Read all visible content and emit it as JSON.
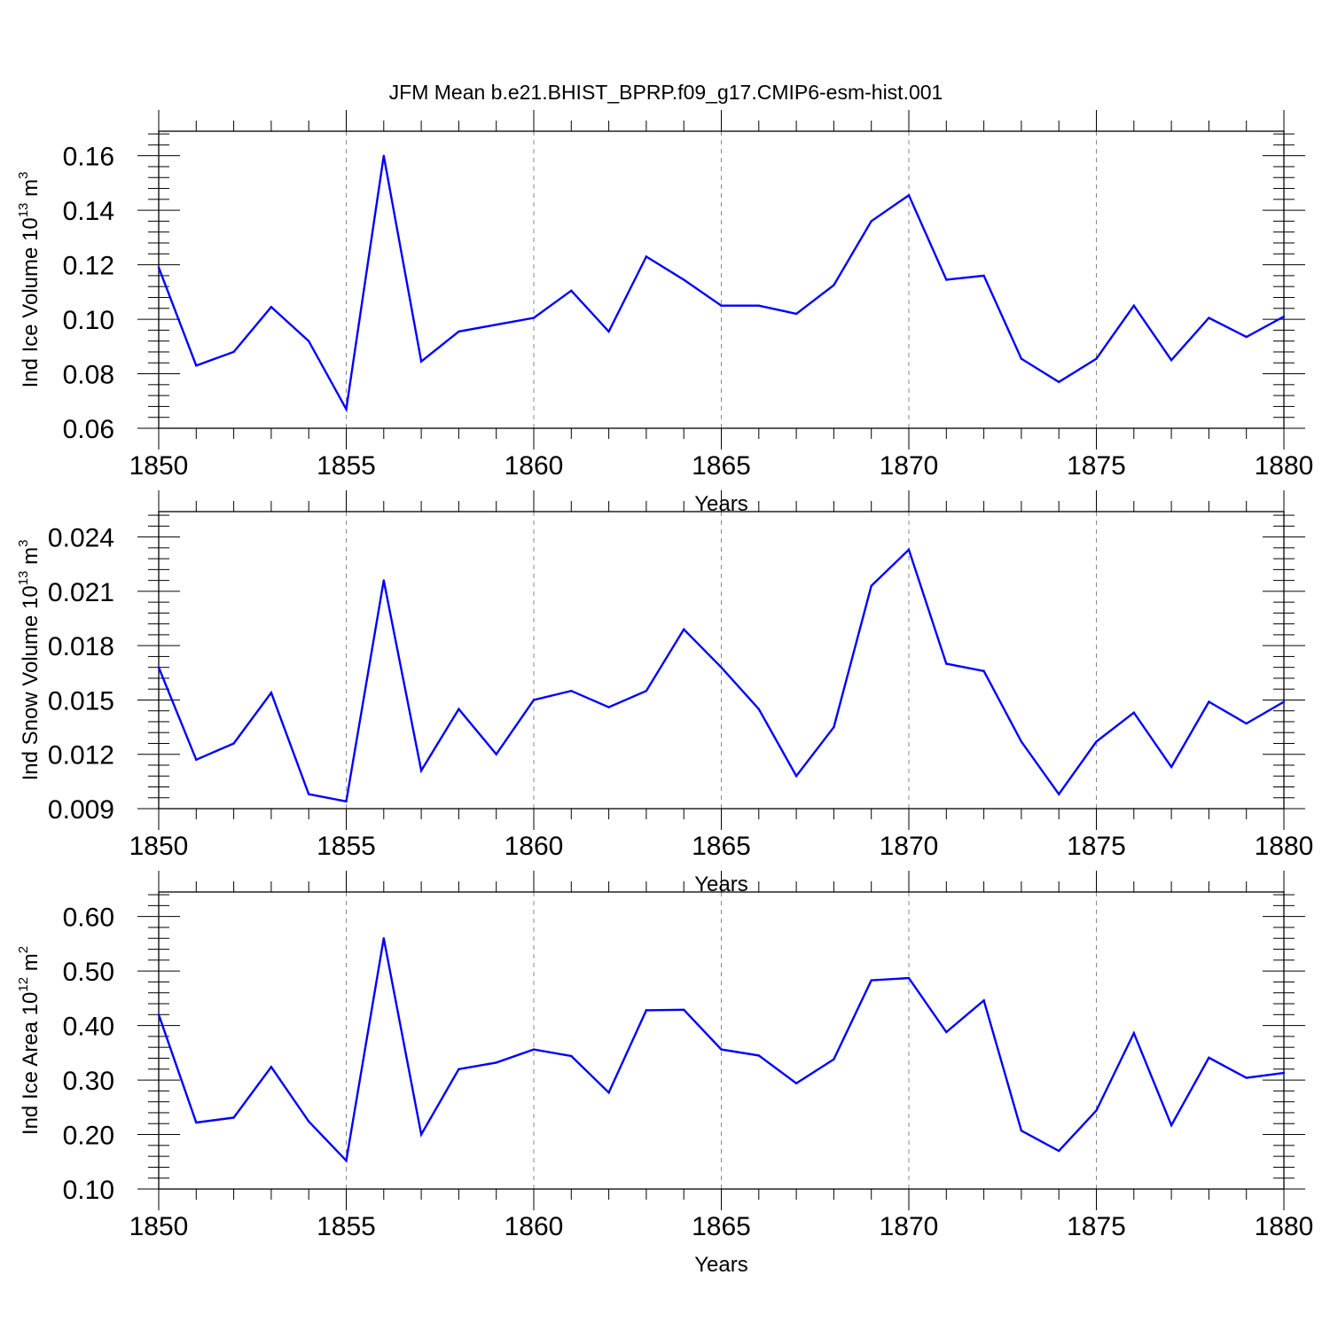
{
  "title": "JFM Mean b.e21.BHIST_BPRP.f09_g17.CMIP6-esm-hist.001",
  "line_color": "#0000ff",
  "chart_data": [
    {
      "type": "line",
      "ylabel": "Ind Ice Volume 10",
      "ylabel_exp": "13",
      "ylabel_unit": " m",
      "ylabel_unit_exp": "3",
      "xlabel": "Years",
      "xlim": [
        1850,
        1880
      ],
      "ylim": [
        0.06,
        0.169
      ],
      "yticks": [
        "0.06",
        "0.08",
        "0.10",
        "0.12",
        "0.14",
        "0.16"
      ],
      "xticks": [
        "1850",
        "1855",
        "1860",
        "1865",
        "1870",
        "1875",
        "1880"
      ],
      "x": [
        1850,
        1851,
        1852,
        1853,
        1854,
        1855,
        1856,
        1857,
        1858,
        1859,
        1860,
        1861,
        1862,
        1863,
        1864,
        1865,
        1866,
        1867,
        1868,
        1869,
        1870,
        1871,
        1872,
        1873,
        1874,
        1875,
        1876,
        1877,
        1878,
        1879,
        1880
      ],
      "values": [
        0.119,
        0.083,
        0.088,
        0.1045,
        0.092,
        0.067,
        0.16,
        0.0845,
        0.0955,
        0.098,
        0.1005,
        0.1105,
        0.0955,
        0.123,
        0.1145,
        0.105,
        0.105,
        0.102,
        0.1125,
        0.136,
        0.1455,
        0.1145,
        0.116,
        0.0855,
        0.077,
        0.0855,
        0.105,
        0.085,
        0.1005,
        0.0935,
        0.101
      ]
    },
    {
      "type": "line",
      "ylabel": "Ind Snow Volume 10",
      "ylabel_exp": "13",
      "ylabel_unit": " m",
      "ylabel_unit_exp": "3",
      "xlabel": "Years",
      "xlim": [
        1850,
        1880
      ],
      "ylim": [
        0.009,
        0.0254
      ],
      "yticks": [
        "0.009",
        "0.012",
        "0.015",
        "0.018",
        "0.021",
        "0.024"
      ],
      "xticks": [
        "1850",
        "1855",
        "1860",
        "1865",
        "1870",
        "1875",
        "1880"
      ],
      "x": [
        1850,
        1851,
        1852,
        1853,
        1854,
        1855,
        1856,
        1857,
        1858,
        1859,
        1860,
        1861,
        1862,
        1863,
        1864,
        1865,
        1866,
        1867,
        1868,
        1869,
        1870,
        1871,
        1872,
        1873,
        1874,
        1875,
        1876,
        1877,
        1878,
        1879,
        1880
      ],
      "values": [
        0.0168,
        0.0117,
        0.0126,
        0.0154,
        0.0098,
        0.0094,
        0.0216,
        0.0111,
        0.0145,
        0.012,
        0.015,
        0.0155,
        0.0146,
        0.0155,
        0.0189,
        0.0168,
        0.0145,
        0.0108,
        0.0135,
        0.0213,
        0.0233,
        0.017,
        0.0166,
        0.0127,
        0.0098,
        0.0127,
        0.0143,
        0.0113,
        0.0149,
        0.0137,
        0.0149
      ]
    },
    {
      "type": "line",
      "ylabel": "Ind Ice Area 10",
      "ylabel_exp": "12",
      "ylabel_unit": " m",
      "ylabel_unit_exp": "2",
      "xlabel": "Years",
      "xlim": [
        1850,
        1880
      ],
      "ylim": [
        0.1,
        0.645
      ],
      "yticks": [
        "0.10",
        "0.20",
        "0.30",
        "0.40",
        "0.50",
        "0.60"
      ],
      "xticks": [
        "1850",
        "1855",
        "1860",
        "1865",
        "1870",
        "1875",
        "1880"
      ],
      "x": [
        1850,
        1851,
        1852,
        1853,
        1854,
        1855,
        1856,
        1857,
        1858,
        1859,
        1860,
        1861,
        1862,
        1863,
        1864,
        1865,
        1866,
        1867,
        1868,
        1869,
        1870,
        1871,
        1872,
        1873,
        1874,
        1875,
        1876,
        1877,
        1878,
        1879,
        1880
      ],
      "values": [
        0.42,
        0.222,
        0.231,
        0.324,
        0.224,
        0.152,
        0.56,
        0.2,
        0.32,
        0.332,
        0.356,
        0.344,
        0.277,
        0.428,
        0.429,
        0.356,
        0.345,
        0.294,
        0.338,
        0.483,
        0.487,
        0.388,
        0.446,
        0.207,
        0.17,
        0.244,
        0.386,
        0.217,
        0.341,
        0.304,
        0.313
      ]
    }
  ]
}
